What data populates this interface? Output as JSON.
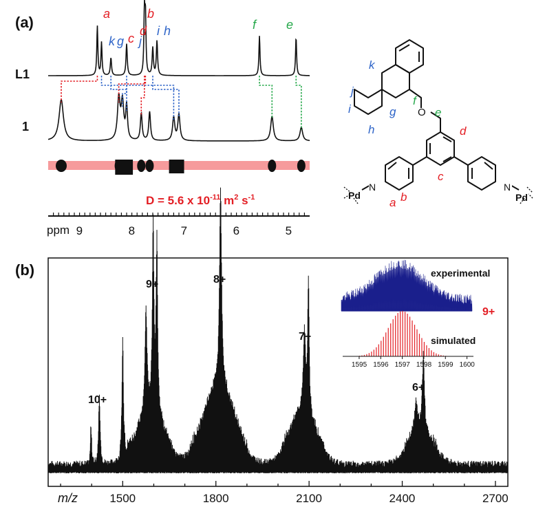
{
  "colors": {
    "red": "#e31e24",
    "blue": "#2e64c8",
    "green": "#25a84a",
    "navy": "#1a1f8c",
    "band": "#f4898b",
    "black": "#111111"
  },
  "panel_a": {
    "label": "(a)",
    "trace_top_label": "L1",
    "trace_mid_label": "1",
    "diffusion": {
      "prefix": "D = 5.6 x 10",
      "exponent": "-11",
      "middle": " m",
      "sq": "2",
      "tail": " s",
      "tail_exp": "-1"
    },
    "ppm_axis": {
      "label": "ppm",
      "ticks": [
        "9",
        "8",
        "7",
        "6",
        "5"
      ]
    },
    "peak_letters": {
      "a": "a",
      "b": "b",
      "c": "c",
      "d": "d",
      "e": "e",
      "f": "f",
      "g": "g",
      "h": "h",
      "i": "i",
      "j": "j",
      "k": "k"
    },
    "structure": {
      "pd_left": "Pd",
      "pd_right": "Pd",
      "n_left": "N",
      "n_right": "N",
      "oxygen": "O"
    }
  },
  "panel_b": {
    "label": "(b)",
    "xlabel": "m/z",
    "ticks": [
      "1500",
      "1800",
      "2100",
      "2400",
      "2700"
    ],
    "charge_labels": [
      "10+",
      "9+",
      "8+",
      "7+",
      "6+"
    ],
    "inset": {
      "experimental_label": "experimental",
      "simulated_label": "simulated",
      "charge": "9+",
      "ticks": [
        "1595",
        "1596",
        "1597",
        "1598",
        "1599",
        "1600"
      ]
    }
  },
  "chart_data": [
    {
      "type": "line",
      "title": "",
      "xlabel": "ppm",
      "xlim": [
        9.6,
        4.6
      ],
      "x_ticks": [
        9,
        8,
        7,
        6,
        5
      ],
      "series": [
        {
          "peaks_ppm": [
            8.66,
            8.58,
            8.4,
            8.1,
            7.76,
            7.74,
            7.6,
            7.52,
            5.56,
            4.86
          ],
          "peak_labels": [
            "a",
            "k",
            "g",
            "j",
            "b",
            "d",
            "i",
            "h",
            "f",
            "e"
          ]
        },
        {
          "peaks_ppm": [
            9.35,
            8.25,
            8.18,
            8.1,
            7.82,
            7.66,
            7.2,
            7.1,
            5.32,
            4.76
          ]
        }
      ]
    },
    {
      "type": "line",
      "title": "",
      "xlabel": "m/z",
      "xlim": [
        1260,
        2740
      ],
      "x_ticks": [
        1500,
        1800,
        2100,
        2400,
        2700
      ],
      "series": [
        {
          "peaks_mz": [
            1398,
            1425,
            1500,
            1575,
            1598,
            1610,
            1815,
            2085,
            2098,
            2468
          ],
          "peak_labels": [
            "",
            "10+",
            "",
            "",
            "9+",
            "",
            "8+",
            "",
            "7+",
            "6+"
          ]
        }
      ]
    },
    {
      "type": "bar",
      "title": "",
      "x_ticks": [
        1595,
        1596,
        1597,
        1598,
        1599,
        1600
      ],
      "xlim": [
        1594.3,
        1600.3
      ],
      "series": [
        {
          "name": "experimental",
          "center": 1597.0
        },
        {
          "name": "simulated",
          "center": 1597.0
        }
      ]
    }
  ]
}
